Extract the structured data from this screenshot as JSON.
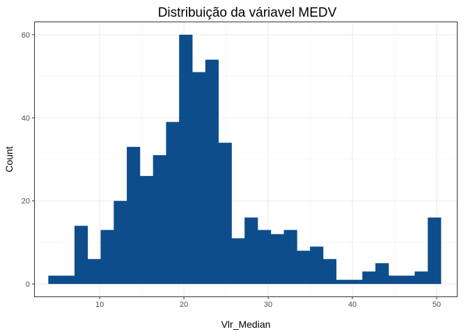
{
  "chart_data": {
    "type": "bar",
    "title": "Distribuição da váriavel MEDV",
    "xlabel": "Vlr_Median",
    "ylabel": "Count",
    "bar_color": "#0D4D8B",
    "grid": true,
    "xlim": [
      2.3,
      52.4
    ],
    "ylim": [
      -3,
      63
    ],
    "xticks": [
      10,
      20,
      30,
      40,
      50
    ],
    "yticks": [
      0,
      20,
      40,
      60
    ],
    "bins": [
      {
        "x0": 3.9,
        "x1": 5.45,
        "count": 2
      },
      {
        "x0": 5.45,
        "x1": 7.01,
        "count": 2
      },
      {
        "x0": 7.01,
        "x1": 8.56,
        "count": 14
      },
      {
        "x0": 8.56,
        "x1": 10.11,
        "count": 6
      },
      {
        "x0": 10.11,
        "x1": 11.67,
        "count": 13
      },
      {
        "x0": 11.67,
        "x1": 13.22,
        "count": 20
      },
      {
        "x0": 13.22,
        "x1": 14.77,
        "count": 33
      },
      {
        "x0": 14.77,
        "x1": 16.33,
        "count": 26
      },
      {
        "x0": 16.33,
        "x1": 17.88,
        "count": 31
      },
      {
        "x0": 17.88,
        "x1": 19.43,
        "count": 39
      },
      {
        "x0": 19.43,
        "x1": 20.99,
        "count": 60
      },
      {
        "x0": 20.99,
        "x1": 22.54,
        "count": 51
      },
      {
        "x0": 22.54,
        "x1": 24.09,
        "count": 54
      },
      {
        "x0": 24.09,
        "x1": 25.65,
        "count": 34
      },
      {
        "x0": 25.65,
        "x1": 27.2,
        "count": 11
      },
      {
        "x0": 27.2,
        "x1": 28.75,
        "count": 16
      },
      {
        "x0": 28.75,
        "x1": 30.31,
        "count": 13
      },
      {
        "x0": 30.31,
        "x1": 31.86,
        "count": 12
      },
      {
        "x0": 31.86,
        "x1": 33.41,
        "count": 13
      },
      {
        "x0": 33.41,
        "x1": 34.97,
        "count": 8
      },
      {
        "x0": 34.97,
        "x1": 36.52,
        "count": 9
      },
      {
        "x0": 36.52,
        "x1": 38.07,
        "count": 6
      },
      {
        "x0": 38.07,
        "x1": 39.63,
        "count": 1
      },
      {
        "x0": 39.63,
        "x1": 41.18,
        "count": 1
      },
      {
        "x0": 41.18,
        "x1": 42.73,
        "count": 3
      },
      {
        "x0": 42.73,
        "x1": 44.29,
        "count": 5
      },
      {
        "x0": 44.29,
        "x1": 45.84,
        "count": 2
      },
      {
        "x0": 45.84,
        "x1": 47.39,
        "count": 2
      },
      {
        "x0": 47.39,
        "x1": 48.95,
        "count": 3
      },
      {
        "x0": 48.95,
        "x1": 50.5,
        "count": 16
      }
    ]
  }
}
